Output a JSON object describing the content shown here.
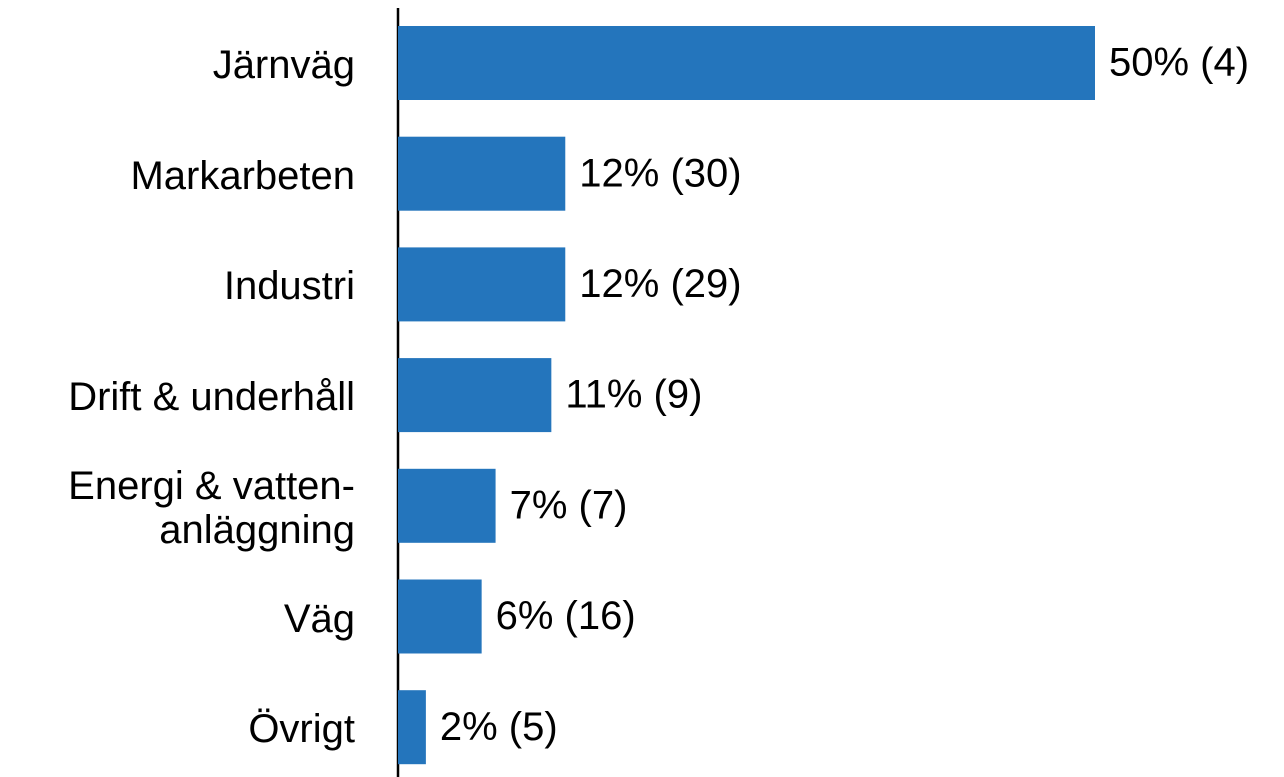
{
  "chart_data": {
    "type": "bar",
    "orientation": "horizontal",
    "categories": [
      "Järnväg",
      "Markarbeten",
      "Industri",
      "Drift & underhåll",
      "Energi & vatten-\nanläggning",
      "Väg",
      "Övrigt"
    ],
    "values": [
      50,
      12,
      12,
      11,
      7,
      6,
      2
    ],
    "value_labels": [
      "50% (4)",
      "12% (30)",
      "12% (29)",
      "11% (9)",
      "7% (7)",
      "6% (16)",
      "2% (5)"
    ],
    "color": "#2475bc"
  }
}
